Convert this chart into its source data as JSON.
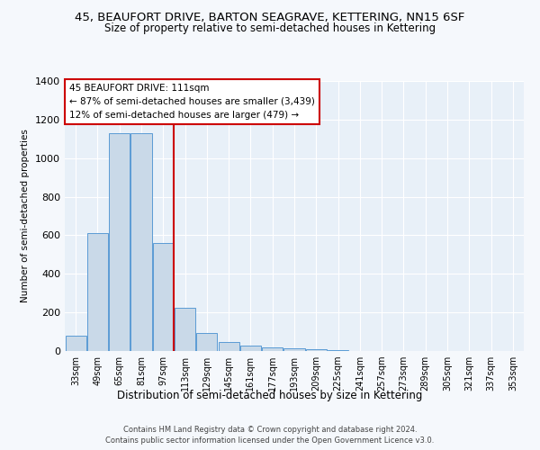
{
  "title": "45, BEAUFORT DRIVE, BARTON SEAGRAVE, KETTERING, NN15 6SF",
  "subtitle": "Size of property relative to semi-detached houses in Kettering",
  "xlabel": "Distribution of semi-detached houses by size in Kettering",
  "ylabel": "Number of semi-detached properties",
  "categories": [
    "33sqm",
    "49sqm",
    "65sqm",
    "81sqm",
    "97sqm",
    "113sqm",
    "129sqm",
    "145sqm",
    "161sqm",
    "177sqm",
    "193sqm",
    "209sqm",
    "225sqm",
    "241sqm",
    "257sqm",
    "273sqm",
    "289sqm",
    "305sqm",
    "321sqm",
    "337sqm",
    "353sqm"
  ],
  "values": [
    80,
    610,
    1130,
    1130,
    560,
    225,
    95,
    45,
    30,
    20,
    15,
    10,
    5,
    0,
    0,
    0,
    0,
    0,
    0,
    0,
    0
  ],
  "bar_color": "#c9d9e8",
  "bar_edge_color": "#5b9bd5",
  "vline_index": 4.5,
  "annotation_line1": "45 BEAUFORT DRIVE: 111sqm",
  "annotation_line2": "← 87% of semi-detached houses are smaller (3,439)",
  "annotation_line3": "12% of semi-detached houses are larger (479) →",
  "annotation_box_color": "#ffffff",
  "annotation_box_edge_color": "#cc0000",
  "vline_color": "#cc0000",
  "ylim": [
    0,
    1400
  ],
  "yticks": [
    0,
    200,
    400,
    600,
    800,
    1000,
    1200,
    1400
  ],
  "plot_bg_color": "#e8f0f8",
  "fig_bg_color": "#f5f8fc",
  "footer_line1": "Contains HM Land Registry data © Crown copyright and database right 2024.",
  "footer_line2": "Contains public sector information licensed under the Open Government Licence v3.0.",
  "title_fontsize": 9.5,
  "subtitle_fontsize": 8.5,
  "ylabel_text": "Number of semi-detached properties"
}
